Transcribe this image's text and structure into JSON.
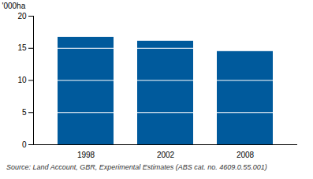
{
  "chart_data": {
    "type": "bar",
    "categories": [
      "1998",
      "2002",
      "2008"
    ],
    "values": [
      16.7,
      16.1,
      14.5
    ],
    "color": "#005a9c",
    "y_label": "'000ha",
    "ylim": [
      0,
      20
    ],
    "yticks": [
      0,
      5,
      10,
      15,
      20
    ],
    "grid": true,
    "caption": "Source: Land Account, GBR, Experimental Estimates (ABS cat. no. 4609.0.55.001)"
  }
}
